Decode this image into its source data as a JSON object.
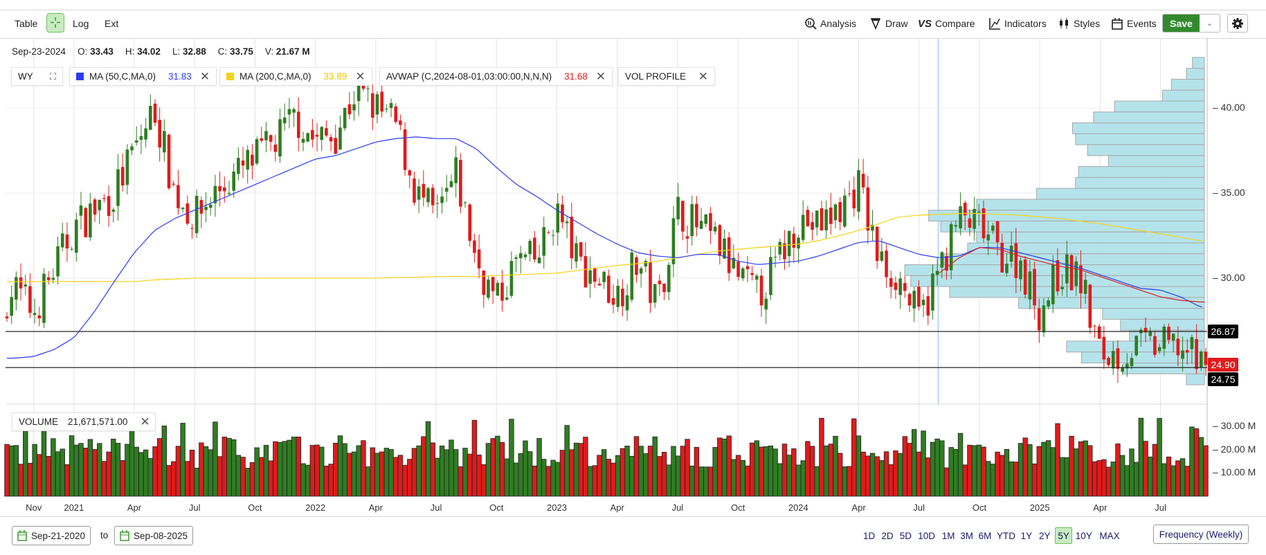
{
  "toolbar": {
    "left": {
      "table": "Table",
      "log": "Log",
      "ext": "Ext"
    },
    "right": {
      "analysis": "Analysis",
      "draw": "Draw",
      "compare": "Compare",
      "indicators": "Indicators",
      "styles": "Styles",
      "events": "Events",
      "save": "Save"
    }
  },
  "ohlc": {
    "date": "Sep-23-2024",
    "o_label": "O:",
    "o": "33.43",
    "h_label": "H:",
    "h": "34.02",
    "l_label": "L:",
    "l": "32.88",
    "c_label": "C:",
    "c": "33.75",
    "v_label": "V:",
    "v": "21.67 M"
  },
  "studies": {
    "symbol": "WY",
    "ma50": {
      "label": "MA (50,C,MA,0)",
      "value": "31.83",
      "color": "#2a3cf5"
    },
    "ma200": {
      "label": "MA (200,C,MA,0)",
      "value": "33.89",
      "color": "#f5d31a"
    },
    "avwap": {
      "label": "AVWAP (C,2024-08-01,03:00:00,N,N,N)",
      "value": "31.68",
      "color": "#e01b1b"
    },
    "volprofile": {
      "label": "VOL PROFILE"
    },
    "volume": {
      "label": "VOLUME",
      "value": "21,671,571.00"
    }
  },
  "colors": {
    "up": "#2f7d22",
    "down": "#e01b1b",
    "profile": "#b1e1ea"
  },
  "price_axis": {
    "ticks": [
      {
        "v": 40,
        "label": "40.00"
      },
      {
        "v": 35,
        "label": "35.00"
      },
      {
        "v": 30,
        "label": "30.00"
      }
    ]
  },
  "volume_axis": {
    "ticks": [
      {
        "v": 30,
        "label": "30.00 M"
      },
      {
        "v": 20,
        "label": "20.00 M"
      },
      {
        "v": 10,
        "label": "10.00 M"
      }
    ]
  },
  "price_lines": [
    {
      "v": 26.87,
      "label": "26.87",
      "bg": "#000000"
    },
    {
      "v": 24.75,
      "label": "24.75",
      "bg": "#000000"
    }
  ],
  "last_price": {
    "v": 24.9,
    "label": "24.90",
    "bg": "#e01b1b"
  },
  "time_axis": [
    {
      "m": 2,
      "label": "Nov"
    },
    {
      "m": 4,
      "label": "2021"
    },
    {
      "m": 7,
      "label": "Apr"
    },
    {
      "m": 10,
      "label": "Jul"
    },
    {
      "m": 13,
      "label": "Oct"
    },
    {
      "m": 16,
      "label": "2022"
    },
    {
      "m": 19,
      "label": "Apr"
    },
    {
      "m": 22,
      "label": "Jul"
    },
    {
      "m": 25,
      "label": "Oct"
    },
    {
      "m": 28,
      "label": "2023"
    },
    {
      "m": 31,
      "label": "Apr"
    },
    {
      "m": 34,
      "label": "Jul"
    },
    {
      "m": 37,
      "label": "Oct"
    },
    {
      "m": 40,
      "label": "2024"
    },
    {
      "m": 43,
      "label": "Apr"
    },
    {
      "m": 46,
      "label": "Jul"
    },
    {
      "m": 49,
      "label": "Oct"
    },
    {
      "m": 52,
      "label": "2025"
    },
    {
      "m": 55,
      "label": "Apr"
    },
    {
      "m": 58,
      "label": "Jul"
    }
  ],
  "avwap_anchor_month": 46.95,
  "chart_data": {
    "type": "candlestick",
    "frequency": "weekly",
    "weeks": 260,
    "monthly_close": [
      27.5,
      29.5,
      28,
      30.5,
      33,
      34,
      35,
      37.5,
      40,
      35,
      33.5,
      35,
      36,
      37,
      38,
      39.5,
      38,
      38.5,
      41,
      40,
      39,
      35,
      33.5,
      36,
      31,
      28.5,
      31,
      31,
      34,
      31,
      30,
      29,
      31,
      28.5,
      34,
      33,
      32,
      30,
      29,
      31,
      33.5,
      33,
      34,
      35.5,
      31,
      30,
      27.5,
      30.5,
      33.5,
      33,
      31.5,
      31,
      28,
      30.5,
      30,
      25.5,
      25.5,
      26,
      26,
      26,
      24.9
    ],
    "ma50_monthly": [
      25.3,
      25.3,
      25.4,
      25.8,
      26.5,
      28,
      29.8,
      31.5,
      32.8,
      33.5,
      34,
      34.5,
      35,
      35.5,
      36,
      36.5,
      37,
      37.2,
      37.6,
      38,
      38.2,
      38.3,
      38.2,
      38.2,
      37.6,
      36.5,
      35.5,
      34.8,
      34,
      33.3,
      32.6,
      32,
      31.5,
      31.3,
      31.2,
      31.4,
      31.4,
      31,
      30.8,
      30.9,
      31,
      31.3,
      31.7,
      32.1,
      32.2,
      31.8,
      31.4,
      31.2,
      31.3,
      31.8,
      31.8,
      31.5,
      31.2,
      30.9,
      30.6,
      30.2,
      29.8,
      29.4,
      29.3,
      28.9,
      28.3
    ],
    "ma200_monthly": [
      29.8,
      29.8,
      29.8,
      29.8,
      29.8,
      29.8,
      29.8,
      29.8,
      29.9,
      29.95,
      30,
      30,
      30,
      30,
      30,
      30,
      30,
      30,
      30,
      30,
      30.05,
      30.05,
      30.1,
      30.1,
      30.1,
      30.15,
      30.2,
      30.25,
      30.3,
      30.45,
      30.6,
      30.75,
      30.85,
      31,
      31.2,
      31.4,
      31.6,
      31.7,
      31.8,
      31.9,
      32,
      32.2,
      32.5,
      32.8,
      33.2,
      33.6,
      33.7,
      33.75,
      33.8,
      33.8,
      33.75,
      33.7,
      33.6,
      33.5,
      33.35,
      33.2,
      33,
      32.8,
      32.6,
      32.4,
      32.2
    ],
    "avwap_start_month": 47,
    "avwap_monthly": [
      30.3,
      31.2,
      31.8,
      31.7,
      31.3,
      31,
      30.7,
      30.5,
      30.1,
      29.7,
      29.3,
      28.9,
      28.7,
      28.6
    ],
    "vol_profile": {
      "price_low": 23.74,
      "price_high": 42.97,
      "relative_volume_top_to_bottom": [
        4,
        6,
        11,
        14,
        30,
        37,
        44,
        43,
        39,
        32,
        42,
        43,
        56,
        76,
        92,
        88,
        76,
        79,
        87,
        100,
        98,
        85,
        62,
        34,
        28,
        25,
        46,
        41,
        27,
        6
      ]
    },
    "last_volume_m": 21.67
  },
  "footer": {
    "from_date": "Sep-21-2020",
    "to": "to",
    "to_date": "Sep-08-2025",
    "ranges": [
      "1D",
      "2D",
      "5D",
      "10D",
      "1M",
      "3M",
      "6M",
      "YTD",
      "1Y",
      "2Y",
      "5Y",
      "10Y",
      "MAX"
    ],
    "active_range": "5Y",
    "frequency": "Frequency (Weekly)"
  }
}
